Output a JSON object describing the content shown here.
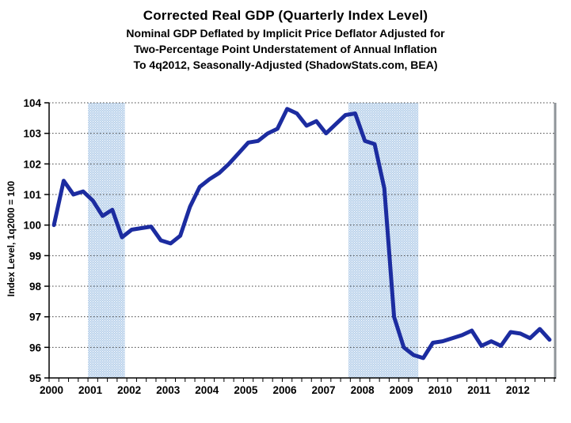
{
  "header": {
    "title": "Corrected Real GDP (Quarterly Index Level)",
    "sub1": "Nominal GDP Deflated by Implicit Price Deflator Adjusted for",
    "sub2": "Two-Percentage Point Understatement of Annual Inflation",
    "sub3": "To 4q2012, Seasonally-Adjusted (ShadowStats.com, BEA)"
  },
  "chart_data": {
    "type": "line",
    "title": "Corrected Real GDP (Quarterly Index Level)",
    "ylabel": "Index Level, 1q2000 = 100",
    "frequency": "quarterly",
    "start_period": "1q2000",
    "end_period": "4q2012",
    "xlim": [
      2000,
      2013
    ],
    "ylim": [
      95,
      104
    ],
    "y_tick_labels": [
      "95",
      "96",
      "97",
      "98",
      "99",
      "100",
      "101",
      "102",
      "103",
      "104"
    ],
    "x_tick_labels": [
      "2000",
      "2001",
      "2002",
      "2003",
      "2004",
      "2005",
      "2006",
      "2007",
      "2008",
      "2009",
      "2010",
      "2011",
      "2012"
    ],
    "minor_x_ticks_per_year": 4,
    "grid": "horizontal-dotted",
    "legend": "none",
    "series": [
      {
        "name": "Corrected Real GDP Index (1q2000 = 100)",
        "values": [
          100.0,
          101.45,
          101.0,
          101.1,
          100.8,
          100.3,
          100.5,
          99.6,
          99.85,
          99.9,
          99.95,
          99.5,
          99.4,
          99.65,
          100.6,
          101.25,
          101.5,
          101.7,
          102.0,
          102.35,
          102.7,
          102.75,
          103.0,
          103.15,
          103.8,
          103.65,
          103.25,
          103.4,
          103.0,
          103.3,
          103.6,
          103.65,
          102.75,
          102.65,
          101.2,
          97.0,
          96.0,
          95.75,
          95.65,
          96.15,
          96.2,
          96.3,
          96.4,
          96.55,
          96.05,
          96.2,
          96.05,
          96.5,
          96.45,
          96.3,
          96.6,
          96.25
        ]
      }
    ],
    "recession_bands": [
      {
        "start": 2001.0,
        "end": 2001.95
      },
      {
        "start": 2007.7,
        "end": 2009.5
      }
    ],
    "colors": {
      "line": "#1c2ca0",
      "band_base": "#bdd4ec",
      "band_dot": "#ffffff",
      "grid": "#404040",
      "axis": "#000000",
      "right_border": "#8f9499"
    }
  }
}
